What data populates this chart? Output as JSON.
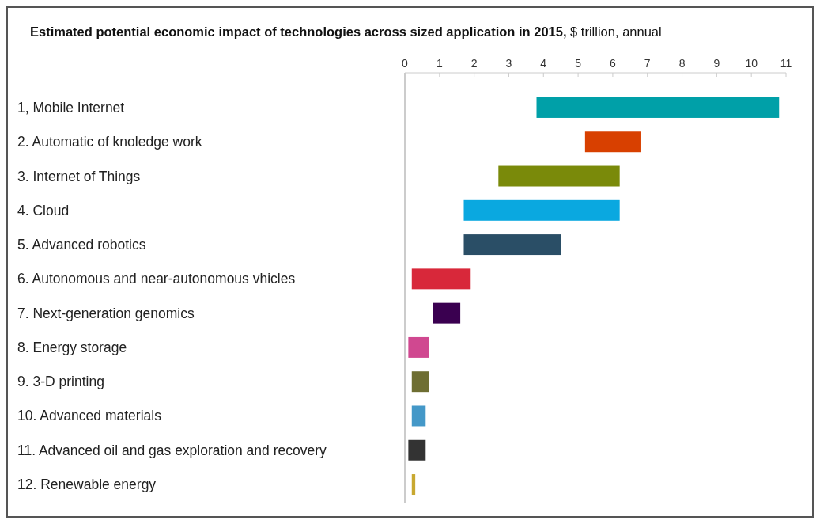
{
  "chart_data": {
    "type": "bar",
    "orientation": "horizontal",
    "title": "Estimated potential economic impact of technologies across sized application in 2015,",
    "subtitle": "$ trillion, annual",
    "categories": [
      "1, Mobile Internet",
      "2. Automatic of knoledge work",
      "3. Internet of Things",
      "4. Cloud",
      "5. Advanced robotics",
      "6. Autonomous and near-autonomous vhicles",
      "7. Next-generation genomics",
      "8. Energy storage",
      "9. 3-D printing",
      "10. Advanced materials",
      "11. Advanced oil and gas exploration and recovery",
      "12. Renewable energy"
    ],
    "base": [
      3.8,
      5.2,
      2.7,
      1.7,
      1.7,
      0.2,
      0.8,
      0.1,
      0.2,
      0.2,
      0.1,
      0.2
    ],
    "values": [
      7.0,
      1.6,
      3.5,
      4.5,
      2.8,
      1.7,
      0.8,
      0.6,
      0.5,
      0.4,
      0.5,
      0.1
    ],
    "colors": [
      "#00a0a8",
      "#d84000",
      "#7a8a0a",
      "#0aa8e0",
      "#2a4e66",
      "#d8283a",
      "#3a0050",
      "#d04890",
      "#6e6e32",
      "#4498c8",
      "#333333",
      "#c8a830"
    ],
    "xlim": [
      0,
      11
    ],
    "xticks": [
      0,
      1,
      2,
      3,
      4,
      5,
      6,
      7,
      8,
      9,
      10,
      11
    ],
    "grid": false
  }
}
